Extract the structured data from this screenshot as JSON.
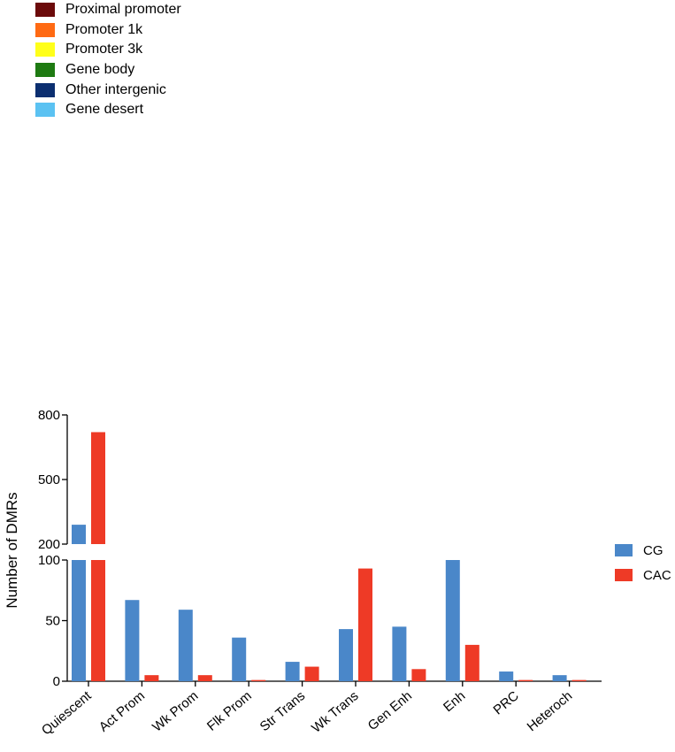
{
  "legend_top": [
    {
      "label": "Proximal promoter",
      "color": "#6b0a0a"
    },
    {
      "label": "Promoter 1k",
      "color": "#ff6a13"
    },
    {
      "label": "Promoter 3k",
      "color": "#ffff1a"
    },
    {
      "label": "Gene body",
      "color": "#1e7a12"
    },
    {
      "label": "Other intergenic",
      "color": "#0c2f70"
    },
    {
      "label": "Gene desert",
      "color": "#5bc2f2"
    }
  ],
  "chart_data": {
    "type": "bar",
    "ylabel": "Number of DMRs",
    "xlabel": "",
    "axis_break": {
      "lower_range": [
        0,
        100
      ],
      "upper_range": [
        200,
        800
      ]
    },
    "yticks_lower": [
      "0",
      "50",
      "100"
    ],
    "yticks_upper": [
      "200",
      "500",
      "800"
    ],
    "categories": [
      "Quiescent",
      "Act Prom",
      "Wk Prom",
      "Flk Prom",
      "Str Trans",
      "Wk Trans",
      "Gen Enh",
      "Enh",
      "PRC",
      "Heteroch"
    ],
    "series": [
      {
        "name": "CG",
        "color": "#4a87c9",
        "values": [
          290,
          67,
          59,
          36,
          16,
          43,
          45,
          100,
          8,
          5
        ]
      },
      {
        "name": "CAC",
        "color": "#ee3a26",
        "values": [
          720,
          5,
          5,
          1,
          12,
          93,
          10,
          30,
          1,
          1
        ]
      }
    ],
    "legend_position": "right"
  }
}
